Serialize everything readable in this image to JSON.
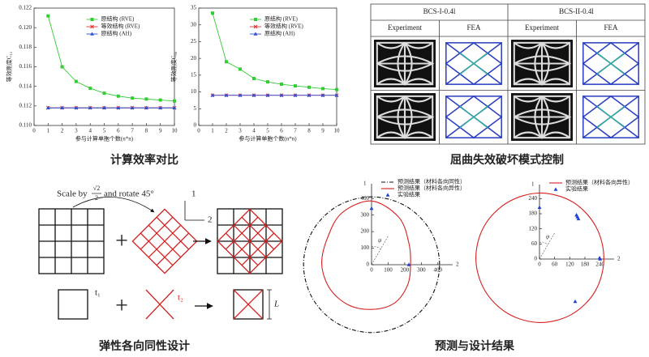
{
  "chart_data": [
    {
      "type": "line",
      "ylabel": "等效刚度C₁₁",
      "xlabel": "参与计算单胞个数(n*n)",
      "x": [
        1,
        2,
        3,
        4,
        5,
        6,
        7,
        8,
        9,
        10
      ],
      "xlim": [
        0,
        10
      ],
      "xticks": [
        0,
        1,
        2,
        3,
        4,
        5,
        6,
        7,
        8,
        9,
        10
      ],
      "ylim": [
        0.11,
        0.122
      ],
      "yticks": [
        {
          "value": 0.11,
          "label": "0.110"
        },
        0.112,
        0.114,
        0.116,
        0.118,
        {
          "value": 0.12,
          "label": "0.120"
        },
        0.122
      ],
      "legend": "upper center",
      "series": [
        {
          "name": "原结构 (RVE)",
          "color": "#33cc33",
          "marker": "square",
          "values": [
            0.1212,
            0.116,
            0.1145,
            0.1138,
            0.1133,
            0.113,
            0.1128,
            0.1127,
            0.1126,
            0.1125
          ]
        },
        {
          "name": "等效结构 (RVE)",
          "color": "#e03030",
          "marker": "x",
          "values": [
            0.1118,
            0.1118,
            0.1118,
            0.1118,
            0.1118,
            0.1118,
            0.1118,
            0.1118,
            0.1118,
            0.1118
          ]
        },
        {
          "name": "原结构 (AH)",
          "color": "#3050d0",
          "marker": "triangle",
          "values": [
            0.1118,
            0.1118,
            0.1118,
            0.1118,
            0.1118,
            0.1118,
            0.1118,
            0.1118,
            0.1118,
            0.1118
          ]
        }
      ]
    },
    {
      "type": "line",
      "ylabel": "等效刚度C₆₆",
      "xlabel": "参与计算单胞个数(n*n)",
      "x": [
        1,
        2,
        3,
        4,
        5,
        6,
        7,
        8,
        9,
        10
      ],
      "xlim": [
        0,
        10
      ],
      "xticks": [
        0,
        1,
        2,
        3,
        4,
        5,
        6,
        7,
        8,
        9,
        10
      ],
      "ylim": [
        0,
        35
      ],
      "yticks": [
        0,
        5,
        10,
        15,
        20,
        25,
        30,
        35
      ],
      "legend": "upper center",
      "series": [
        {
          "name": "原结构 (RVE)",
          "color": "#33cc33",
          "marker": "square",
          "values": [
            33.5,
            19,
            16.8,
            14,
            13,
            12.3,
            11.8,
            11.4,
            11,
            10.7
          ]
        },
        {
          "name": "等效结构 (RVE)",
          "color": "#e03030",
          "marker": "x",
          "values": [
            9,
            9,
            9,
            9,
            9,
            9,
            9,
            9,
            9,
            9
          ]
        },
        {
          "name": "原结构 (AH)",
          "color": "#3050d0",
          "marker": "triangle",
          "values": [
            9,
            9,
            9,
            9,
            9,
            9,
            9,
            9,
            9,
            9
          ]
        }
      ]
    },
    {
      "type": "polar",
      "ylabel": "1",
      "xlabel": "2",
      "annotation": "ψ",
      "xlim": [
        0,
        450
      ],
      "ylim": [
        0,
        450
      ],
      "xticks": [
        0,
        100,
        200,
        300,
        400
      ],
      "yticks": [
        0,
        100,
        200,
        300,
        400
      ],
      "legend": "upper right",
      "series": [
        {
          "name": "预测结果（材料各向同性）",
          "color": "#111111",
          "style": "dashdot",
          "theta": [
            0,
            30,
            60,
            90,
            120,
            150,
            180,
            210,
            240,
            270,
            300,
            330
          ],
          "values": [
            410,
            410,
            410,
            410,
            410,
            410,
            410,
            410,
            410,
            410,
            410,
            410
          ]
        },
        {
          "name": "预测结果（材料各向异性）",
          "color": "#d62020",
          "theta": [
            0,
            30,
            60,
            90,
            120,
            150,
            180,
            210,
            240,
            270,
            300,
            330
          ],
          "values": [
            235,
            260,
            330,
            385,
            360,
            310,
            300,
            290,
            280,
            270,
            270,
            250
          ]
        },
        {
          "name": "实验结果",
          "color": "#1f3fd0",
          "marker": "triangle",
          "theta": [
            90,
            0
          ],
          "values": [
            340,
            225
          ]
        }
      ]
    },
    {
      "type": "polar",
      "ylabel": "1",
      "xlabel": "2",
      "annotation": "ψ",
      "xlim": [
        0,
        270
      ],
      "ylim": [
        0,
        270
      ],
      "xticks": [
        0,
        60,
        120,
        180,
        240
      ],
      "yticks": [
        0,
        60,
        120,
        180,
        240
      ],
      "legend": "upper right",
      "series": [
        {
          "name": "预测结果（材料各向异性）",
          "color": "#d62020",
          "theta": [
            0,
            30,
            60,
            90,
            120,
            150,
            180,
            210,
            240,
            270,
            300,
            330
          ],
          "values": [
            255,
            258,
            262,
            262,
            258,
            255,
            252,
            250,
            250,
            252,
            254,
            255
          ]
        },
        {
          "name": "实验结果",
          "color": "#1f3fd0",
          "marker": "triangle",
          "theta": [
            90,
            48,
            46,
            50,
            0,
            1,
            310
          ],
          "values": [
            205,
            225,
            222,
            228,
            240,
            238,
            220
          ]
        }
      ]
    }
  ],
  "image_table": {
    "groups": [
      "BCS-I-0.4l",
      "BCS-II-0.4l"
    ],
    "columns": [
      "Experiment",
      "FEA",
      "Experiment",
      "FEA"
    ]
  },
  "diagram": {
    "scale_text": "Scale by",
    "fraction_num": "√2",
    "fraction_den": "2",
    "rotate_text": "and rotate 45°",
    "axis_1": "1",
    "axis_2": "2",
    "t1": "t₁",
    "t2": "t₂",
    "length": "L"
  },
  "captions": [
    "计算效率对比",
    "屈曲失效破坏模式控制",
    "弹性各向同性设计",
    "预测与设计结果"
  ]
}
